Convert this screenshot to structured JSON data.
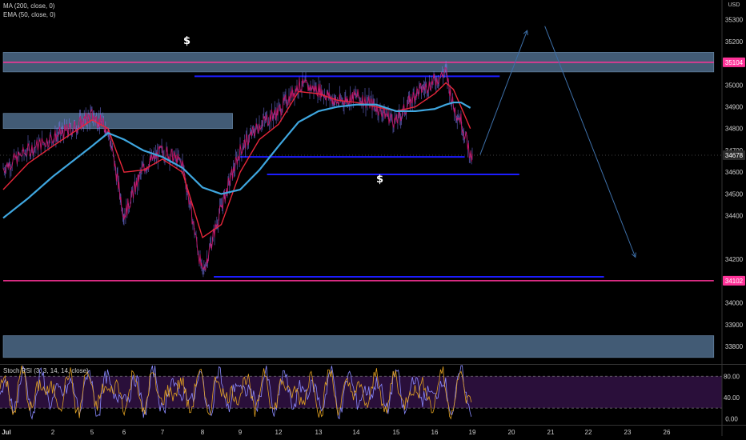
{
  "indicators": {
    "ma_label": "MA (200, close, 0)",
    "ema_label": "EMA (50, close, 0)",
    "stoch_label": "Stoch RSI (3, 3, 14, 14, close)"
  },
  "currency": {
    "top": "",
    "bottom": "USD"
  },
  "annotations": {
    "dollar_1": "$",
    "dollar_2": "$"
  },
  "colors": {
    "price": "#c2186b",
    "price_wick": "#8080ff",
    "ema": "#e8263a",
    "ma": "#3fa7e0",
    "zone": "#4d6b8a",
    "pink_level": "#ff3399",
    "blue_level": "#1c1cff",
    "arrow": "#3d6fa8",
    "stoch_k": "#8a8aff",
    "stoch_d": "#e0a020",
    "stoch_band": "#2a0f3a"
  },
  "chart_data": [
    {
      "type": "line",
      "title": "",
      "y_axis_position": "right",
      "ylim": [
        33720,
        35390
      ],
      "y_ticks": [
        33800,
        33900,
        34000,
        34200,
        34400,
        34500,
        34600,
        34700,
        34800,
        34900,
        35000,
        35200,
        35300
      ],
      "x_tick_labels": [
        "Jul",
        "2",
        "5",
        "6",
        "7",
        "8",
        "9",
        "12",
        "13",
        "14",
        "15",
        "16",
        "19",
        "20",
        "21",
        "22",
        "23",
        "26"
      ],
      "price_tags": [
        {
          "label": "35104",
          "value": 35104,
          "color": "#ff3399"
        },
        {
          "label": "34678",
          "value": 34678,
          "color": "#2a2a2a"
        },
        {
          "label": "34102",
          "value": 34102,
          "color": "#ff3399"
        }
      ],
      "series": [
        {
          "kind": "price",
          "x": [
            0,
            0.5,
            1,
            1.5,
            2,
            2.5,
            3,
            3.5,
            4,
            4.5,
            5,
            5.5,
            6,
            6.5,
            7,
            7.5,
            8,
            8.5,
            9,
            9.5,
            10,
            10.5,
            11,
            11.3,
            11.5,
            11.7,
            12
          ],
          "values": [
            34620,
            34700,
            34760,
            34800,
            34860,
            34800,
            34400,
            34620,
            34700,
            34640,
            34130,
            34440,
            34700,
            34820,
            34880,
            35000,
            34980,
            34920,
            34950,
            34900,
            34830,
            34960,
            35020,
            35060,
            34900,
            34840,
            34650
          ]
        },
        {
          "kind": "ema",
          "x": [
            0,
            0.5,
            1,
            1.5,
            2,
            2.5,
            3,
            3.5,
            4,
            4.5,
            5,
            5.5,
            6,
            6.5,
            7,
            7.5,
            8,
            8.5,
            9,
            9.5,
            10,
            10.5,
            11,
            11.3,
            11.5,
            11.7,
            12
          ],
          "values": [
            34520,
            34640,
            34720,
            34780,
            34840,
            34800,
            34600,
            34610,
            34660,
            34600,
            34300,
            34360,
            34600,
            34750,
            34820,
            34970,
            34960,
            34930,
            34920,
            34900,
            34880,
            34900,
            34960,
            35010,
            34980,
            34900,
            34780
          ]
        },
        {
          "kind": "ma",
          "x": [
            0,
            0.5,
            1,
            1.5,
            2,
            2.5,
            3,
            3.5,
            4,
            4.5,
            5,
            5.5,
            6,
            6.5,
            7,
            7.5,
            8,
            8.5,
            9,
            9.5,
            10,
            10.5,
            11,
            11.3,
            11.5,
            11.7,
            12
          ],
          "values": [
            34390,
            34480,
            34580,
            34650,
            34720,
            34780,
            34750,
            34700,
            34670,
            34620,
            34530,
            34500,
            34520,
            34610,
            34720,
            34830,
            34880,
            34900,
            34910,
            34910,
            34880,
            34880,
            34890,
            34910,
            34920,
            34920,
            34890
          ]
        }
      ],
      "levels": [
        {
          "kind": "zone",
          "low": 35060,
          "high": 35150,
          "x_from": 0,
          "x_to": 18.2
        },
        {
          "kind": "zone",
          "low": 34800,
          "high": 34870,
          "x_from": 0,
          "x_to": 5.8
        },
        {
          "kind": "zone",
          "low": 33750,
          "high": 33850,
          "x_from": 0,
          "x_to": 18.2
        },
        {
          "kind": "pink",
          "value": 35104,
          "x_from": 0,
          "x_to": 18.2
        },
        {
          "kind": "pink",
          "value": 34102,
          "x_from": 0,
          "x_to": 18.2
        },
        {
          "kind": "blue",
          "value": 35040,
          "x_from": 4.8,
          "x_to": 12.7
        },
        {
          "kind": "blue",
          "value": 34670,
          "x_from": 6.0,
          "x_to": 11.8
        },
        {
          "kind": "blue",
          "value": 34590,
          "x_from": 6.7,
          "x_to": 13.2
        },
        {
          "kind": "blue",
          "value": 34120,
          "x_from": 5.3,
          "x_to": 15.4
        }
      ],
      "projections": [
        {
          "from": [
            12.2,
            34680
          ],
          "to": [
            13.4,
            35250
          ]
        },
        {
          "from": [
            13.85,
            35270
          ],
          "to": [
            16.2,
            34210
          ]
        }
      ]
    },
    {
      "type": "line",
      "title": "",
      "ylim": [
        -10,
        100
      ],
      "y_ticks": [
        0,
        40,
        80
      ],
      "y_tick_labels": [
        "0.00",
        "40.00",
        "80.00"
      ],
      "band": [
        20,
        80
      ],
      "series": [
        {
          "kind": "stoch_k",
          "note": "oscillating 0-100 across Jul 1 to Jul 16"
        },
        {
          "kind": "stoch_d",
          "note": "smoothed %K"
        }
      ]
    }
  ]
}
